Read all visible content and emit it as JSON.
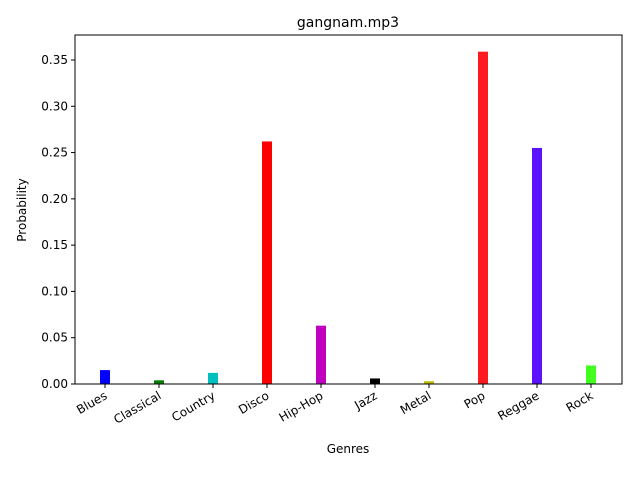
{
  "chart_data": {
    "type": "bar",
    "title": "gangnam.mp3",
    "xlabel": "Genres",
    "ylabel": "Probability",
    "categories": [
      "Blues",
      "Classical",
      "Country",
      "Disco",
      "Hip-Hop",
      "Jazz",
      "Metal",
      "Pop",
      "Reggae",
      "Rock"
    ],
    "values": [
      0.015,
      0.004,
      0.012,
      0.262,
      0.063,
      0.006,
      0.003,
      0.359,
      0.255,
      0.02
    ],
    "colors": [
      "#0000ff",
      "#008000",
      "#00bfbf",
      "#ff0000",
      "#bf00bf",
      "#000000",
      "#bfbf00",
      "#ff1a22",
      "#5a12ff",
      "#43ff20"
    ],
    "ylim": [
      0,
      0.377
    ],
    "yticks": [
      0.0,
      0.05,
      0.1,
      0.15,
      0.2,
      0.25,
      0.3,
      0.35
    ],
    "ytick_labels": [
      "0.00",
      "0.05",
      "0.10",
      "0.15",
      "0.20",
      "0.25",
      "0.30",
      "0.35"
    ],
    "grid": false,
    "legend": "none"
  }
}
